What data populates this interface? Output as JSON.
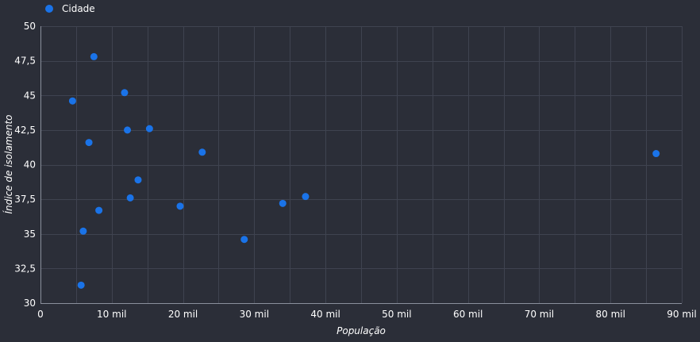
{
  "chart_data": {
    "type": "scatter",
    "title": "",
    "xlabel": "População",
    "ylabel": "Índice de isolamento",
    "xlim": [
      0,
      90000
    ],
    "ylim": [
      30,
      50
    ],
    "x_ticks": [
      0,
      10000,
      20000,
      30000,
      40000,
      50000,
      60000,
      70000,
      80000,
      90000
    ],
    "x_tick_labels": [
      "0",
      "10 mil",
      "20 mil",
      "30 mil",
      "40 mil",
      "50 mil",
      "60 mil",
      "70 mil",
      "80 mil",
      "90 mil"
    ],
    "y_ticks": [
      30,
      32.5,
      35,
      37.5,
      40,
      42.5,
      45,
      47.5,
      50
    ],
    "y_tick_labels": [
      "30",
      "32,5",
      "35",
      "37,5",
      "40",
      "42,5",
      "45",
      "47,5",
      "50"
    ],
    "grid": true,
    "legend_position": "top-left",
    "series": [
      {
        "name": "Cidade",
        "color": "#1a73e8",
        "points": [
          {
            "x": 4500,
            "y": 44.6
          },
          {
            "x": 7500,
            "y": 47.8
          },
          {
            "x": 11800,
            "y": 45.2
          },
          {
            "x": 6800,
            "y": 41.6
          },
          {
            "x": 12200,
            "y": 42.5
          },
          {
            "x": 15300,
            "y": 42.6
          },
          {
            "x": 22700,
            "y": 40.9
          },
          {
            "x": 13700,
            "y": 38.9
          },
          {
            "x": 12600,
            "y": 37.6
          },
          {
            "x": 8200,
            "y": 36.7
          },
          {
            "x": 6000,
            "y": 35.2
          },
          {
            "x": 5700,
            "y": 31.3
          },
          {
            "x": 19600,
            "y": 37.0
          },
          {
            "x": 28600,
            "y": 34.6
          },
          {
            "x": 34000,
            "y": 37.2
          },
          {
            "x": 37200,
            "y": 37.7
          },
          {
            "x": 86400,
            "y": 40.8
          }
        ]
      }
    ]
  }
}
